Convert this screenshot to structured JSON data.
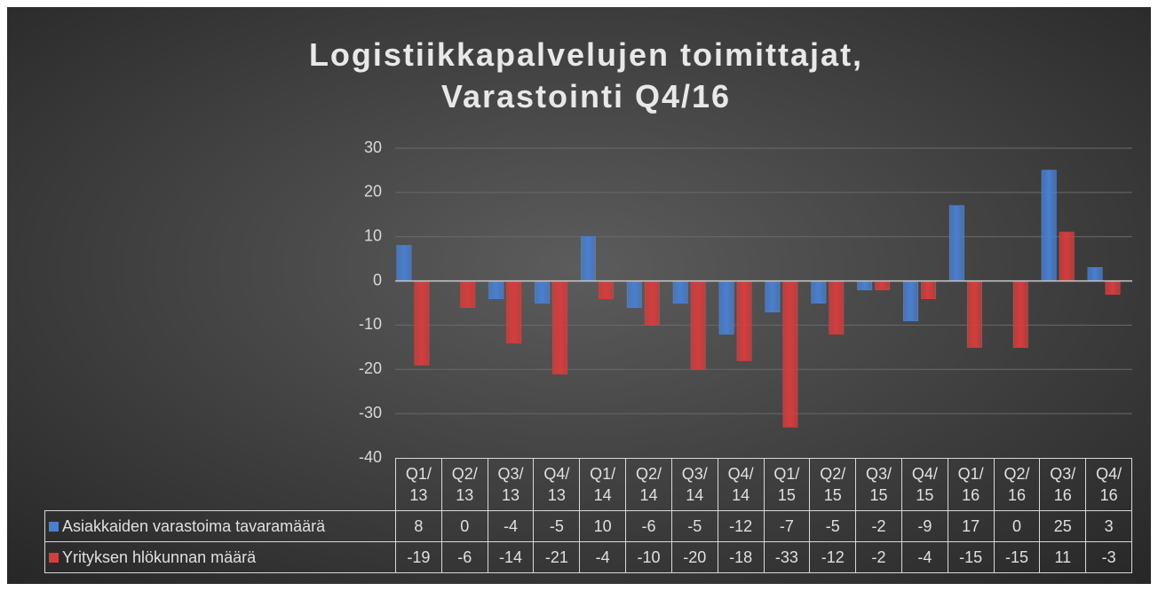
{
  "chart_data": {
    "type": "bar",
    "title": "Logistiikkapalvelujen toimittajat, Varastointi Q4/16",
    "categories": [
      "Q1/13",
      "Q2/13",
      "Q3/13",
      "Q4/13",
      "Q1/14",
      "Q2/14",
      "Q3/14",
      "Q4/14",
      "Q1/15",
      "Q2/15",
      "Q3/15",
      "Q4/15",
      "Q1/16",
      "Q2/16",
      "Q3/16",
      "Q4/16"
    ],
    "series": [
      {
        "name": "Asiakkaiden varastoima tavaramäärä",
        "color": "#4a7fd0",
        "values": [
          8,
          0,
          -4,
          -5,
          10,
          -6,
          -5,
          -12,
          -7,
          -5,
          -2,
          -9,
          17,
          0,
          25,
          3
        ]
      },
      {
        "name": "Yrityksen hlökunnan määrä",
        "color": "#d63d3d",
        "values": [
          -19,
          -6,
          -14,
          -21,
          -4,
          -10,
          -20,
          -18,
          -33,
          -12,
          -2,
          -4,
          -15,
          -15,
          11,
          -3
        ]
      }
    ],
    "ylim": [
      -40,
      30
    ],
    "yticks": [
      -40,
      -30,
      -20,
      -10,
      0,
      10,
      20,
      30
    ],
    "grid": true
  }
}
